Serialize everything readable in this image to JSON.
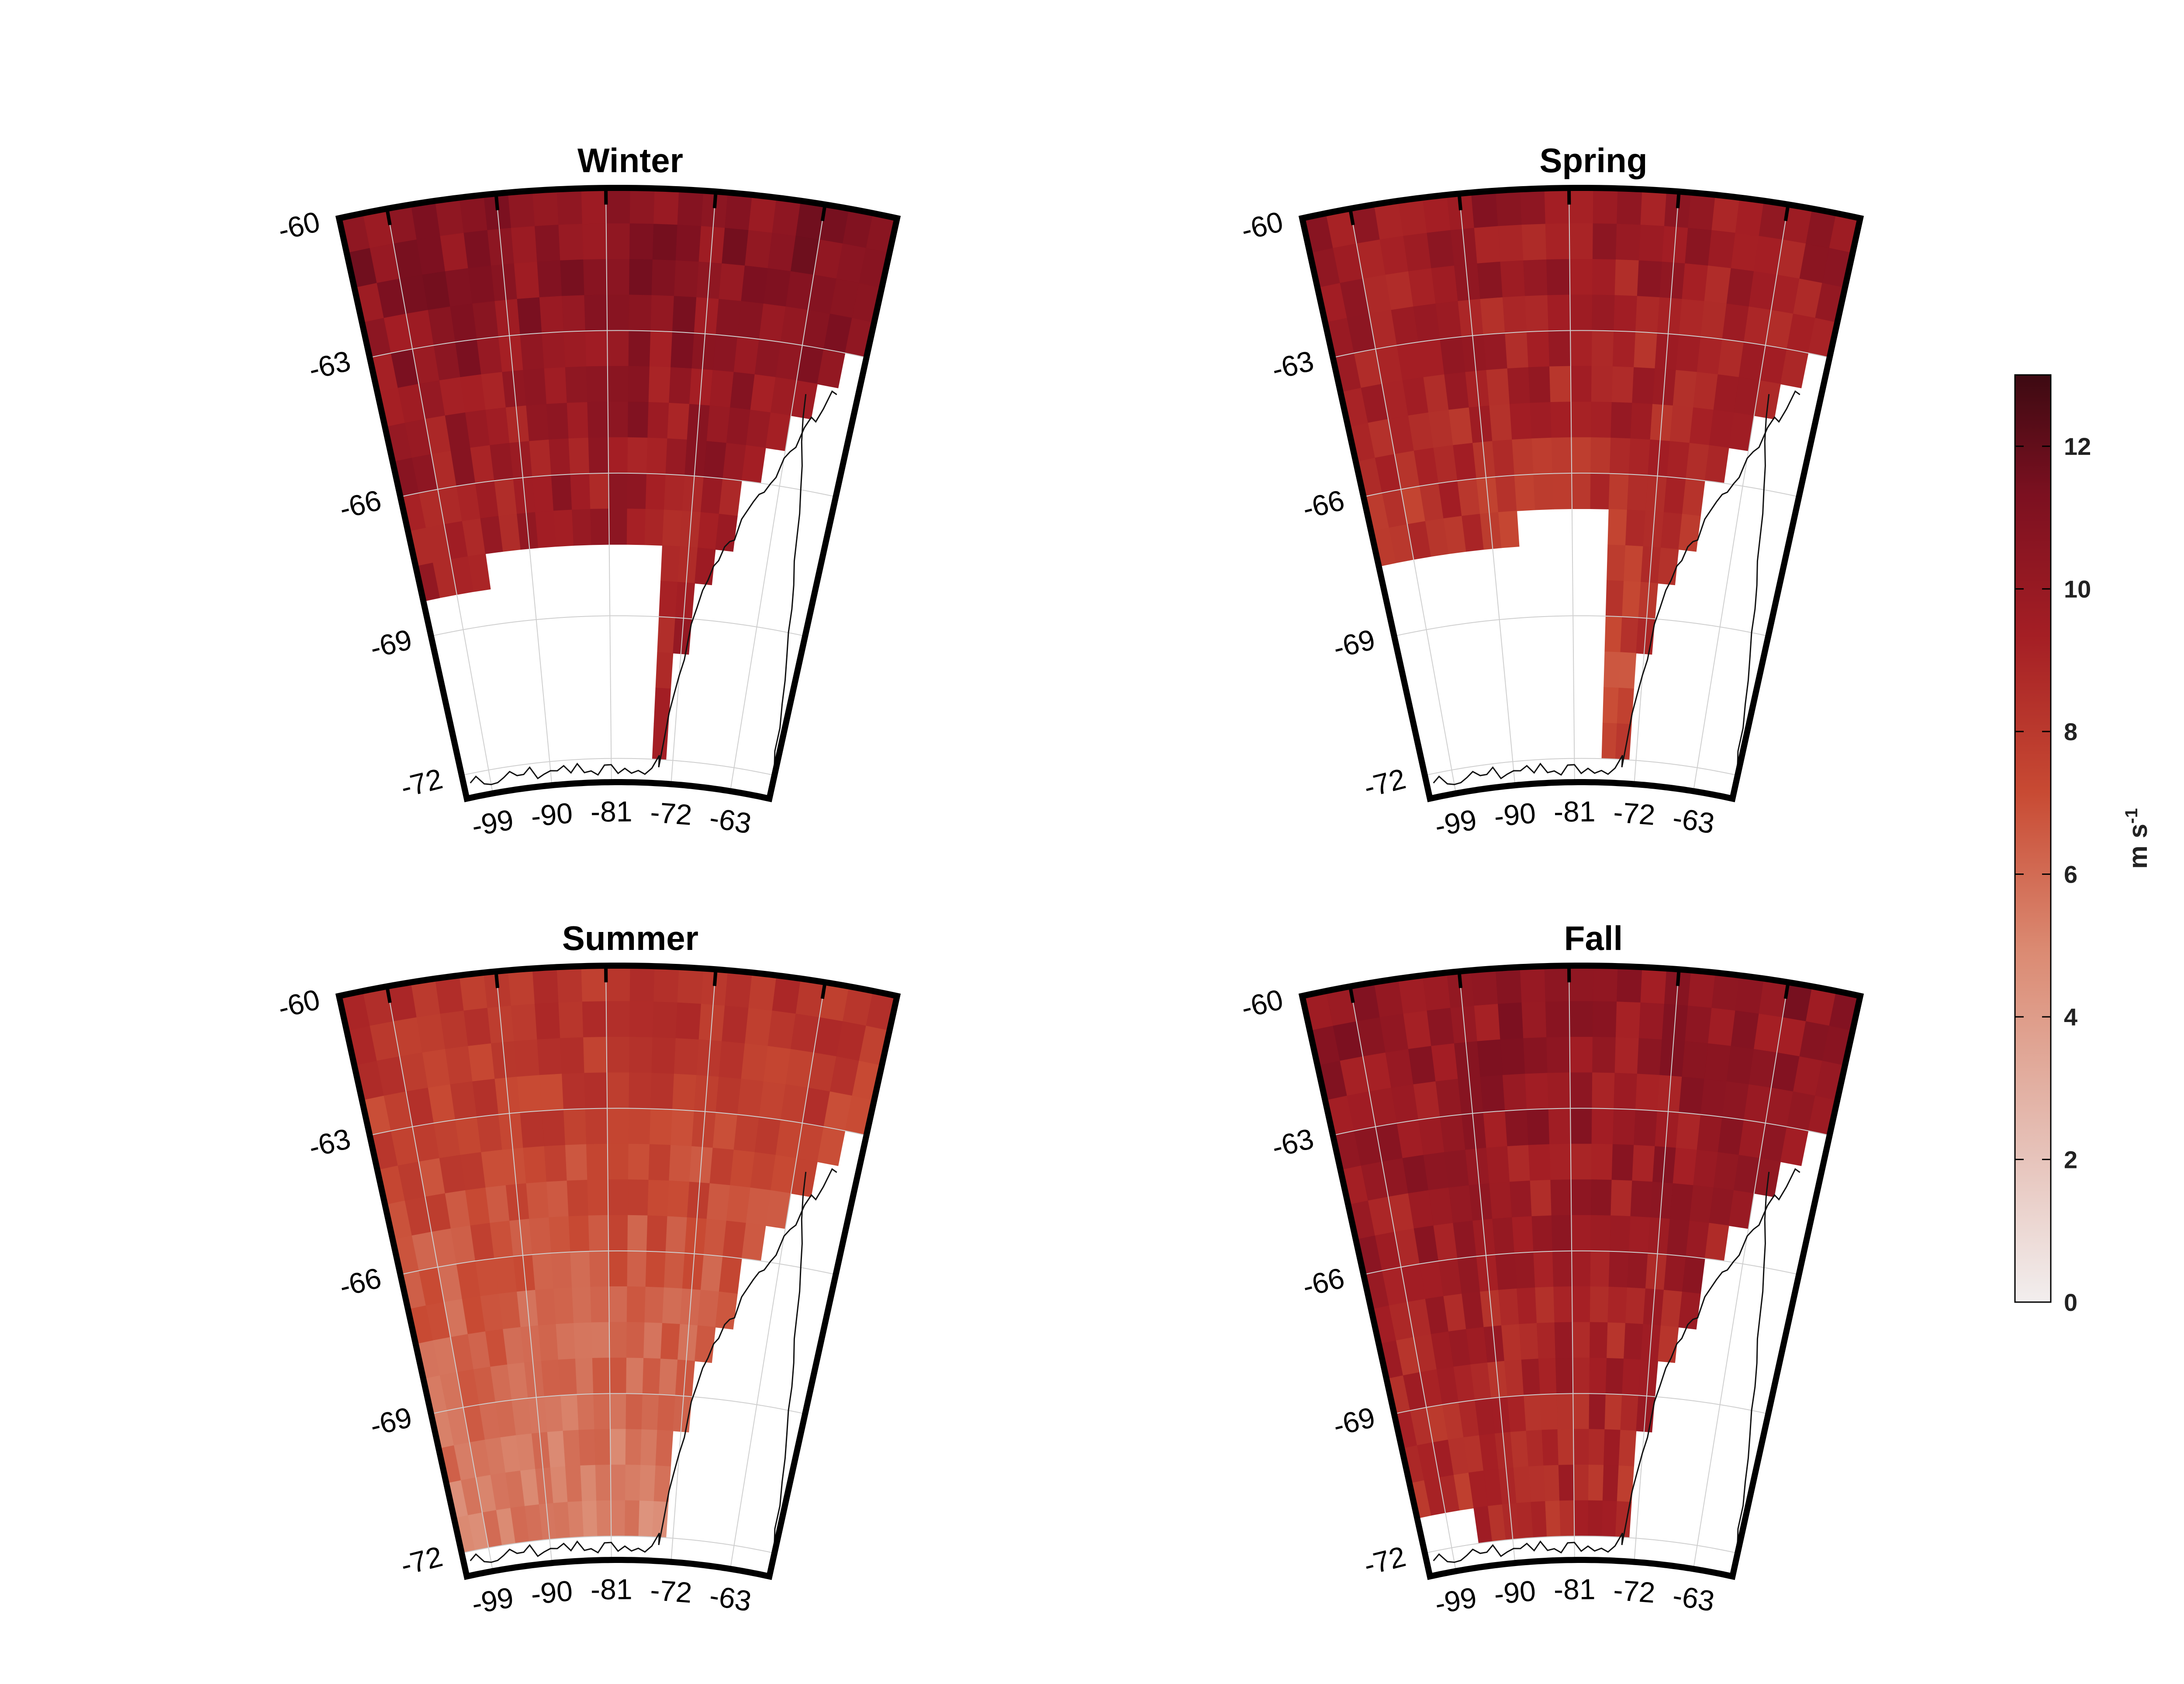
{
  "figure": {
    "panels": [
      {
        "title": "Winter",
        "season": "winter"
      },
      {
        "title": "Spring",
        "season": "spring"
      },
      {
        "title": "Summer",
        "season": "summer"
      },
      {
        "title": "Fall",
        "season": "fall"
      }
    ],
    "lat_tick_labels": [
      "-60",
      "-63",
      "-66",
      "-69",
      "-72"
    ],
    "lon_tick_labels": [
      "-99",
      "-90",
      "-81",
      "-72",
      "-63"
    ],
    "colorbar": {
      "ticks": [
        "0",
        "2",
        "4",
        "6",
        "8",
        "10",
        "12"
      ],
      "range": [
        0,
        13
      ],
      "unit_main": "m s",
      "unit_exp": "-1",
      "color_low": "#f2eeee",
      "color_mid": "#d9694c",
      "color_high": "#3d0a12"
    }
  },
  "chart_data": {
    "type": "heatmap",
    "description_of_field": "seasonal wind speed on a lat/lon grid",
    "lat_range": [
      -60,
      -72.5
    ],
    "lon_range": [
      -103,
      -57
    ],
    "value_range": [
      0,
      13
    ],
    "seasons": {
      "winter": {
        "typical": 10.8,
        "coast": 8.5
      },
      "spring": {
        "typical": 10.0,
        "coast": 7.0
      },
      "summer": {
        "typical": 7.2,
        "coast": 5.0
      },
      "fall": {
        "typical": 10.4,
        "coast": 8.5
      }
    }
  },
  "colors": {
    "frame": "#000000",
    "coastline": "#111111",
    "gridline": "#cfcfcf"
  }
}
